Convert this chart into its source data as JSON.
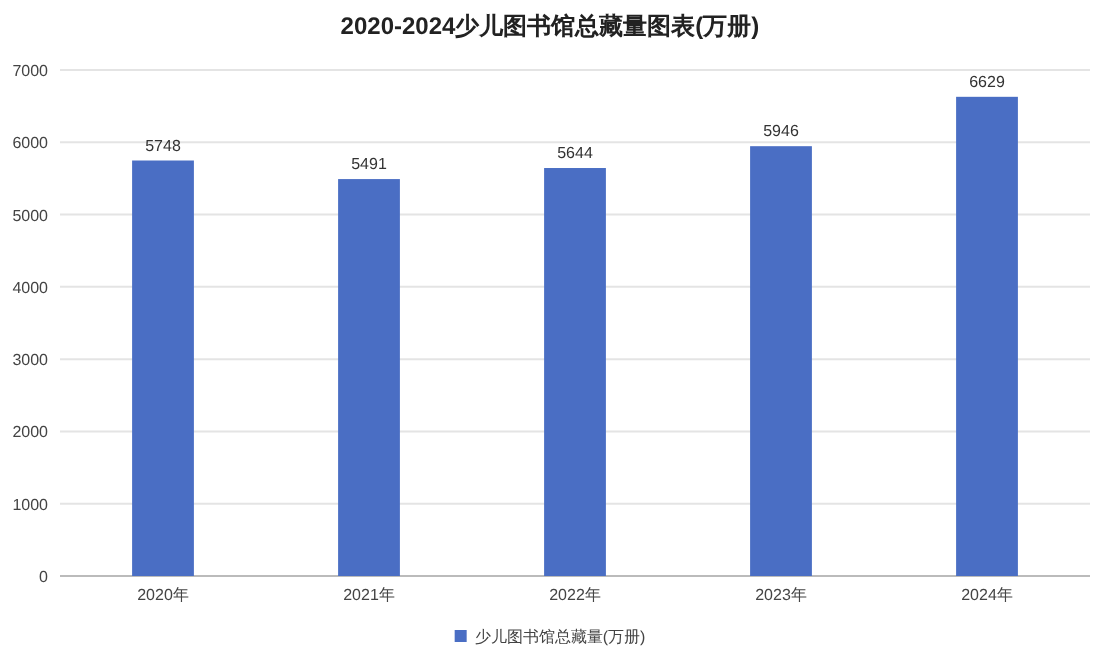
{
  "chart_data": {
    "type": "bar",
    "title": "2020-2024少儿图书馆总藏量图表(万册)",
    "categories": [
      "2020年",
      "2021年",
      "2022年",
      "2023年",
      "2024年"
    ],
    "series": [
      {
        "name": "少儿图书馆总藏量(万册)",
        "color": "#4a6ec4",
        "values": [
          5748,
          5491,
          5644,
          5946,
          6629
        ]
      }
    ],
    "ylim": [
      0,
      7000
    ],
    "yticks": [
      0,
      1000,
      2000,
      3000,
      4000,
      5000,
      6000,
      7000
    ],
    "grid": "y",
    "legend": "bottom",
    "data_labels": true
  }
}
